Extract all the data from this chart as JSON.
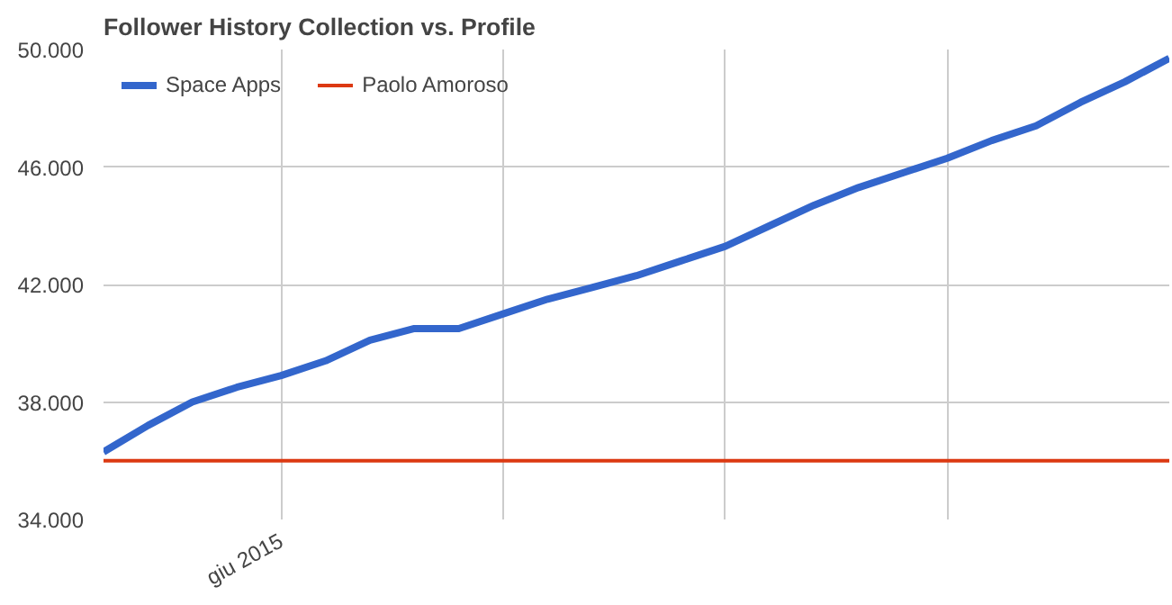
{
  "chart_data": {
    "type": "line",
    "title": "Follower History Collection vs. Profile",
    "categories": [
      null,
      null,
      null,
      null,
      "giu 2015",
      null,
      null,
      null,
      null,
      null,
      null,
      null,
      null,
      null,
      null,
      null,
      null,
      null,
      null,
      null,
      null,
      null,
      null,
      null,
      null
    ],
    "ylim": [
      34000,
      50000
    ],
    "yticks": [
      {
        "value": 34000,
        "label": "34.000"
      },
      {
        "value": 38000,
        "label": "38.000"
      },
      {
        "value": 42000,
        "label": "42.000"
      },
      {
        "value": 46000,
        "label": "46.000"
      },
      {
        "value": 50000,
        "label": "50.000"
      }
    ],
    "grid": true,
    "legend": "top left",
    "line_style": "solid",
    "marker": "none",
    "series": [
      {
        "name": "Space Apps",
        "color": "#3366cc",
        "values": [
          36300,
          37200,
          38000,
          38500,
          38900,
          39400,
          40100,
          40500,
          40500,
          41000,
          41500,
          41900,
          42300,
          42800,
          43300,
          44000,
          44700,
          45300,
          45800,
          46300,
          46900,
          47400,
          48200,
          48900,
          49700
        ]
      },
      {
        "name": "Paolo Amoroso",
        "color": "#dc3912",
        "values": [
          36000,
          36000,
          36000,
          36000,
          36000,
          36000,
          36000,
          36000,
          36000,
          36000,
          36000,
          36000,
          36000,
          36000,
          36000,
          36000,
          36000,
          36000,
          36000,
          36000,
          36000,
          36000,
          36000,
          36000,
          36000
        ]
      }
    ]
  }
}
